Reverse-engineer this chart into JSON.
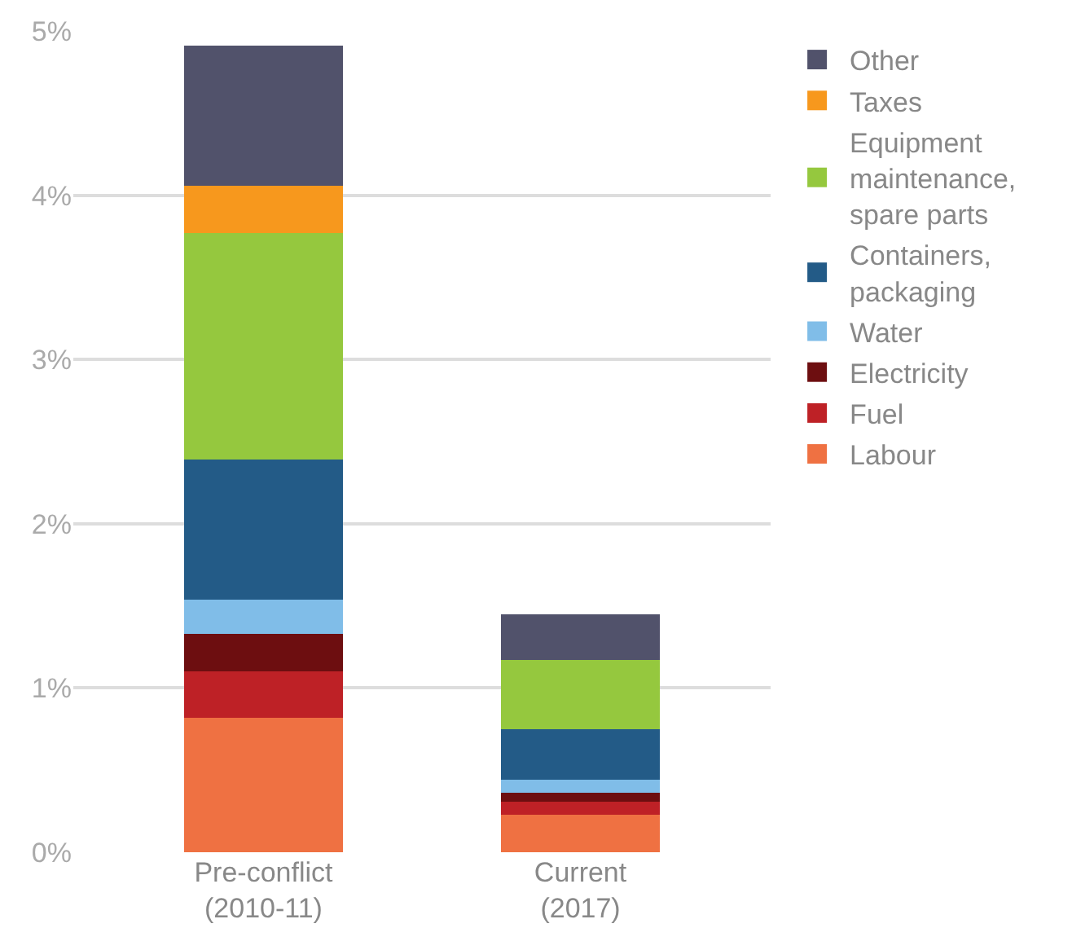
{
  "chart_data": {
    "type": "bar",
    "stacked": true,
    "categories": [
      "Pre-conflict\n(2010-11)",
      "Current\n(2017)"
    ],
    "series": [
      {
        "name": "Labour",
        "color": "#ef7142",
        "values": [
          0.82,
          0.23
        ]
      },
      {
        "name": "Fuel",
        "color": "#be2126",
        "values": [
          0.28,
          0.08
        ]
      },
      {
        "name": "Electricity",
        "color": "#6d0e10",
        "values": [
          0.23,
          0.05
        ]
      },
      {
        "name": "Water",
        "color": "#80bde8",
        "values": [
          0.21,
          0.08
        ]
      },
      {
        "name": "Containers,\npackaging",
        "color": "#235b87",
        "values": [
          0.85,
          0.31
        ]
      },
      {
        "name": "Equipment\nmaintenance,\nspare parts",
        "color": "#95c83e",
        "values": [
          1.38,
          0.42
        ]
      },
      {
        "name": "Taxes",
        "color": "#f7981d",
        "values": [
          0.29,
          0
        ]
      },
      {
        "name": "Other",
        "color": "#51526b",
        "values": [
          0.85,
          0.28
        ]
      }
    ],
    "ylim": [
      0,
      5
    ],
    "yticks": [
      {
        "value": 0,
        "label": "0%"
      },
      {
        "value": 1,
        "label": "1%"
      },
      {
        "value": 2,
        "label": "2%"
      },
      {
        "value": 3,
        "label": "3%"
      },
      {
        "value": 4,
        "label": "4%"
      },
      {
        "value": 5,
        "label": "5%"
      }
    ],
    "grid": "y",
    "legend": "right"
  }
}
